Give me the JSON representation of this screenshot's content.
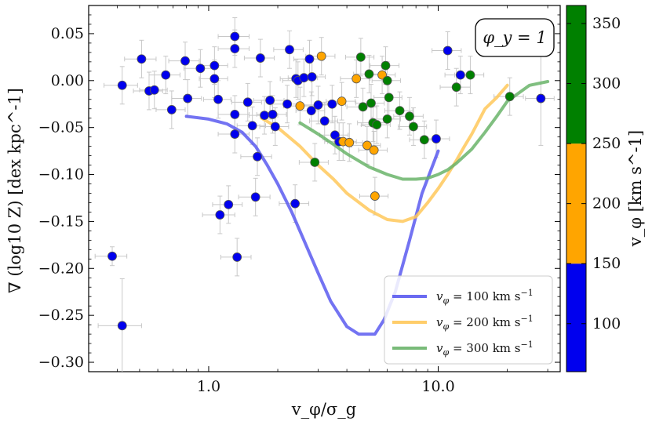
{
  "chart_data": {
    "type": "scatter",
    "xlabel": "v_φ/σ_g",
    "ylabel": "∇ (log10 Z)  [dex kpc^-1]",
    "xscale": "log",
    "xlim": [
      0.3,
      34
    ],
    "ylim": [
      -0.31,
      0.08
    ],
    "x_ticks": [
      {
        "value": 1.0,
        "label": "1.0"
      },
      {
        "value": 10.0,
        "label": "10.0"
      }
    ],
    "y_ticks": [
      {
        "value": 0.05,
        "label": "0.05"
      },
      {
        "value": 0.0,
        "label": "0.00"
      },
      {
        "value": -0.05,
        "label": "−0.05"
      },
      {
        "value": -0.1,
        "label": "−0.10"
      },
      {
        "value": -0.15,
        "label": "−0.15"
      },
      {
        "value": -0.2,
        "label": "−0.20"
      },
      {
        "value": -0.25,
        "label": "−0.25"
      },
      {
        "value": -0.3,
        "label": "−0.30"
      }
    ],
    "annotation": "φ_y = 1",
    "colorbar": {
      "label": "v_φ [km s^-1]",
      "range": [
        60,
        365
      ],
      "segments": [
        {
          "from": 60,
          "to": 150,
          "color": "#0000ee"
        },
        {
          "from": 150,
          "to": 250,
          "color": "#ffa500"
        },
        {
          "from": 250,
          "to": 365,
          "color": "#008000"
        }
      ],
      "ticks": [
        {
          "value": 100,
          "label": "100"
        },
        {
          "value": 150,
          "label": "150"
        },
        {
          "value": 200,
          "label": "200"
        },
        {
          "value": 250,
          "label": "250"
        },
        {
          "value": 300,
          "label": "300"
        },
        {
          "value": 350,
          "label": "350"
        }
      ]
    },
    "series": [
      {
        "name": "v_φ = 100 km s^-1",
        "legend_prefix": "v",
        "legend_sub": "φ",
        "legend_value": " = 100 km s",
        "color": "#5a5af0",
        "x": [
          0.8,
          1.0,
          1.2,
          1.4,
          1.6,
          1.8,
          2.0,
          2.3,
          2.6,
          3.0,
          3.4,
          4.0,
          4.5,
          5.0,
          5.3,
          5.8,
          6.5,
          7.5,
          8.5,
          10.0
        ],
        "y": [
          -0.038,
          -0.041,
          -0.046,
          -0.055,
          -0.07,
          -0.09,
          -0.11,
          -0.14,
          -0.17,
          -0.205,
          -0.235,
          -0.262,
          -0.27,
          -0.27,
          -0.27,
          -0.255,
          -0.225,
          -0.17,
          -0.12,
          -0.075
        ]
      },
      {
        "name": "v_φ = 200 km s^-1",
        "legend_prefix": "v",
        "legend_sub": "φ",
        "legend_value": " = 200 km s",
        "color": "#ffc85a",
        "x": [
          1.7,
          2.0,
          2.5,
          3.0,
          3.5,
          4.0,
          5.0,
          6.0,
          7.0,
          8.0,
          9.0,
          10.0,
          11.0,
          12.0,
          13.0,
          14.0,
          16.0,
          18.0,
          20.0
        ],
        "y": [
          -0.04,
          -0.05,
          -0.07,
          -0.09,
          -0.105,
          -0.12,
          -0.138,
          -0.148,
          -0.15,
          -0.145,
          -0.13,
          -0.115,
          -0.1,
          -0.085,
          -0.07,
          -0.057,
          -0.03,
          -0.018,
          -0.005
        ]
      },
      {
        "name": "v_φ = 300 km s^-1",
        "legend_prefix": "v",
        "legend_sub": "φ",
        "legend_value": " = 300 km s",
        "color": "#6ab46a",
        "x": [
          2.5,
          3.0,
          3.5,
          4.0,
          5.0,
          6.0,
          7.0,
          8.0,
          9.0,
          10.0,
          11.0,
          12.0,
          14.0,
          16.0,
          18.0,
          20.0,
          25.0,
          30.0
        ],
        "y": [
          -0.045,
          -0.057,
          -0.068,
          -0.078,
          -0.092,
          -0.1,
          -0.105,
          -0.105,
          -0.104,
          -0.1,
          -0.095,
          -0.088,
          -0.073,
          -0.055,
          -0.038,
          -0.022,
          -0.005,
          -0.001
        ]
      }
    ],
    "points": [
      {
        "x": 0.38,
        "y": -0.187,
        "xerr": 0.06,
        "yerr": 0.01,
        "c": "blue"
      },
      {
        "x": 0.42,
        "y": -0.261,
        "xerr": 0.09,
        "yerr": 0.05,
        "c": "blue"
      },
      {
        "x": 0.42,
        "y": -0.005,
        "xerr": 0.07,
        "yerr": 0.02,
        "c": "blue"
      },
      {
        "x": 0.51,
        "y": 0.023,
        "xerr": 0.08,
        "yerr": 0.02,
        "c": "blue"
      },
      {
        "x": 0.55,
        "y": -0.011,
        "xerr": 0.08,
        "yerr": 0.02,
        "c": "blue"
      },
      {
        "x": 0.58,
        "y": -0.01,
        "xerr": 0.08,
        "yerr": 0.02,
        "c": "blue"
      },
      {
        "x": 0.65,
        "y": 0.006,
        "xerr": 0.1,
        "yerr": 0.02,
        "c": "blue"
      },
      {
        "x": 0.69,
        "y": -0.031,
        "xerr": 0.1,
        "yerr": 0.02,
        "c": "blue"
      },
      {
        "x": 0.79,
        "y": 0.021,
        "xerr": 0.12,
        "yerr": 0.02,
        "c": "blue"
      },
      {
        "x": 0.81,
        "y": -0.019,
        "xerr": 0.12,
        "yerr": 0.02,
        "c": "blue"
      },
      {
        "x": 0.92,
        "y": 0.013,
        "xerr": 0.14,
        "yerr": 0.02,
        "c": "blue"
      },
      {
        "x": 1.06,
        "y": 0.016,
        "xerr": 0.15,
        "yerr": 0.02,
        "c": "blue"
      },
      {
        "x": 1.06,
        "y": 0.002,
        "xerr": 0.15,
        "yerr": 0.02,
        "c": "blue"
      },
      {
        "x": 1.1,
        "y": -0.02,
        "xerr": 0.15,
        "yerr": 0.02,
        "c": "blue"
      },
      {
        "x": 1.12,
        "y": -0.143,
        "xerr": 0.18,
        "yerr": 0.02,
        "c": "blue"
      },
      {
        "x": 1.22,
        "y": -0.132,
        "xerr": 0.18,
        "yerr": 0.02,
        "c": "blue"
      },
      {
        "x": 1.3,
        "y": 0.047,
        "xerr": 0.2,
        "yerr": 0.02,
        "c": "blue"
      },
      {
        "x": 1.3,
        "y": 0.034,
        "xerr": 0.2,
        "yerr": 0.02,
        "c": "blue"
      },
      {
        "x": 1.3,
        "y": -0.036,
        "xerr": 0.2,
        "yerr": 0.02,
        "c": "blue"
      },
      {
        "x": 1.3,
        "y": -0.057,
        "xerr": 0.2,
        "yerr": 0.02,
        "c": "blue"
      },
      {
        "x": 1.33,
        "y": -0.188,
        "xerr": 0.2,
        "yerr": 0.02,
        "c": "blue"
      },
      {
        "x": 1.48,
        "y": -0.023,
        "xerr": 0.22,
        "yerr": 0.02,
        "c": "blue"
      },
      {
        "x": 1.55,
        "y": -0.048,
        "xerr": 0.22,
        "yerr": 0.02,
        "c": "blue"
      },
      {
        "x": 1.6,
        "y": -0.124,
        "xerr": 0.25,
        "yerr": 0.02,
        "c": "blue"
      },
      {
        "x": 1.63,
        "y": -0.081,
        "xerr": 0.25,
        "yerr": 0.02,
        "c": "blue"
      },
      {
        "x": 1.68,
        "y": 0.024,
        "xerr": 0.25,
        "yerr": 0.02,
        "c": "blue"
      },
      {
        "x": 1.75,
        "y": -0.037,
        "xerr": 0.25,
        "yerr": 0.02,
        "c": "blue"
      },
      {
        "x": 1.85,
        "y": -0.021,
        "xerr": 0.28,
        "yerr": 0.02,
        "c": "blue"
      },
      {
        "x": 1.9,
        "y": -0.036,
        "xerr": 0.28,
        "yerr": 0.02,
        "c": "blue"
      },
      {
        "x": 1.95,
        "y": -0.049,
        "xerr": 0.28,
        "yerr": 0.02,
        "c": "blue"
      },
      {
        "x": 2.2,
        "y": -0.025,
        "xerr": 0.33,
        "yerr": 0.02,
        "c": "blue"
      },
      {
        "x": 2.25,
        "y": 0.033,
        "xerr": 0.33,
        "yerr": 0.02,
        "c": "blue"
      },
      {
        "x": 2.38,
        "y": -0.131,
        "xerr": 0.35,
        "yerr": 0.02,
        "c": "blue"
      },
      {
        "x": 2.4,
        "y": 0.002,
        "xerr": 0.35,
        "yerr": 0.02,
        "c": "blue"
      },
      {
        "x": 2.45,
        "y": 0.0,
        "xerr": 0.35,
        "yerr": 0.02,
        "c": "blue"
      },
      {
        "x": 2.6,
        "y": 0.003,
        "xerr": 0.38,
        "yerr": 0.02,
        "c": "blue"
      },
      {
        "x": 2.5,
        "y": -0.027,
        "xerr": 0.38,
        "yerr": 0.02,
        "c": "orange"
      },
      {
        "x": 2.75,
        "y": 0.023,
        "xerr": 0.4,
        "yerr": 0.02,
        "c": "blue"
      },
      {
        "x": 2.82,
        "y": 0.004,
        "xerr": 0.4,
        "yerr": 0.02,
        "c": "blue"
      },
      {
        "x": 2.8,
        "y": -0.032,
        "xerr": 0.4,
        "yerr": 0.02,
        "c": "blue"
      },
      {
        "x": 2.9,
        "y": -0.087,
        "xerr": 0.42,
        "yerr": 0.02,
        "c": "green"
      },
      {
        "x": 3.0,
        "y": -0.026,
        "xerr": 0.45,
        "yerr": 0.02,
        "c": "blue"
      },
      {
        "x": 3.1,
        "y": 0.026,
        "xerr": 0.45,
        "yerr": 0.02,
        "c": "orange"
      },
      {
        "x": 3.2,
        "y": -0.043,
        "xerr": 0.45,
        "yerr": 0.02,
        "c": "blue"
      },
      {
        "x": 3.45,
        "y": -0.025,
        "xerr": 0.5,
        "yerr": 0.02,
        "c": "blue"
      },
      {
        "x": 3.55,
        "y": -0.058,
        "xerr": 0.5,
        "yerr": 0.02,
        "c": "blue"
      },
      {
        "x": 3.7,
        "y": -0.065,
        "xerr": 0.5,
        "yerr": 0.02,
        "c": "blue"
      },
      {
        "x": 3.8,
        "y": -0.022,
        "xerr": 0.55,
        "yerr": 0.02,
        "c": "orange"
      },
      {
        "x": 3.85,
        "y": -0.065,
        "xerr": 0.55,
        "yerr": 0.02,
        "c": "orange"
      },
      {
        "x": 4.1,
        "y": -0.066,
        "xerr": 0.58,
        "yerr": 0.02,
        "c": "orange"
      },
      {
        "x": 4.4,
        "y": 0.002,
        "xerr": 0.65,
        "yerr": 0.02,
        "c": "orange"
      },
      {
        "x": 4.6,
        "y": 0.025,
        "xerr": 0.65,
        "yerr": 0.02,
        "c": "green"
      },
      {
        "x": 4.7,
        "y": -0.028,
        "xerr": 0.7,
        "yerr": 0.02,
        "c": "green"
      },
      {
        "x": 4.9,
        "y": -0.069,
        "xerr": 0.7,
        "yerr": 0.02,
        "c": "orange"
      },
      {
        "x": 5.0,
        "y": 0.007,
        "xerr": 0.72,
        "yerr": 0.02,
        "c": "green"
      },
      {
        "x": 5.1,
        "y": -0.024,
        "xerr": 0.72,
        "yerr": 0.02,
        "c": "green"
      },
      {
        "x": 5.2,
        "y": -0.045,
        "xerr": 0.75,
        "yerr": 0.02,
        "c": "green"
      },
      {
        "x": 5.25,
        "y": -0.074,
        "xerr": 0.75,
        "yerr": 0.02,
        "c": "orange"
      },
      {
        "x": 5.3,
        "y": -0.123,
        "xerr": 0.75,
        "yerr": 0.02,
        "c": "orange"
      },
      {
        "x": 5.4,
        "y": -0.047,
        "xerr": 0.78,
        "yerr": 0.02,
        "c": "green"
      },
      {
        "x": 5.7,
        "y": 0.006,
        "xerr": 0.8,
        "yerr": 0.02,
        "c": "orange"
      },
      {
        "x": 5.9,
        "y": 0.016,
        "xerr": 0.85,
        "yerr": 0.02,
        "c": "green"
      },
      {
        "x": 6.0,
        "y": 0.0,
        "xerr": 0.85,
        "yerr": 0.02,
        "c": "green"
      },
      {
        "x": 6.0,
        "y": -0.041,
        "xerr": 0.85,
        "yerr": 0.02,
        "c": "green"
      },
      {
        "x": 6.1,
        "y": -0.018,
        "xerr": 0.85,
        "yerr": 0.02,
        "c": "green"
      },
      {
        "x": 6.8,
        "y": -0.032,
        "xerr": 0.95,
        "yerr": 0.02,
        "c": "green"
      },
      {
        "x": 7.5,
        "y": -0.038,
        "xerr": 1.1,
        "yerr": 0.02,
        "c": "green"
      },
      {
        "x": 7.8,
        "y": -0.049,
        "xerr": 1.1,
        "yerr": 0.02,
        "c": "green"
      },
      {
        "x": 8.7,
        "y": -0.063,
        "xerr": 1.2,
        "yerr": 0.02,
        "c": "green"
      },
      {
        "x": 9.8,
        "y": -0.062,
        "xerr": 1.4,
        "yerr": 0.02,
        "c": "blue"
      },
      {
        "x": 11.0,
        "y": 0.032,
        "xerr": 1.6,
        "yerr": 0.02,
        "c": "blue"
      },
      {
        "x": 12.0,
        "y": -0.007,
        "xerr": 1.8,
        "yerr": 0.02,
        "c": "green"
      },
      {
        "x": 12.5,
        "y": 0.006,
        "xerr": 1.8,
        "yerr": 0.02,
        "c": "blue"
      },
      {
        "x": 13.8,
        "y": 0.006,
        "xerr": 2.0,
        "yerr": 0.02,
        "c": "green"
      },
      {
        "x": 20.5,
        "y": -0.017,
        "xerr": 3.0,
        "yerr": 0.02,
        "c": "green"
      },
      {
        "x": 28.0,
        "y": -0.019,
        "xerr": 4.0,
        "yerr": 0.05,
        "c": "blue"
      }
    ],
    "point_colors": {
      "blue": "#0000ee",
      "orange": "#ffa500",
      "green": "#008000"
    },
    "legend_position": "lower-right"
  }
}
